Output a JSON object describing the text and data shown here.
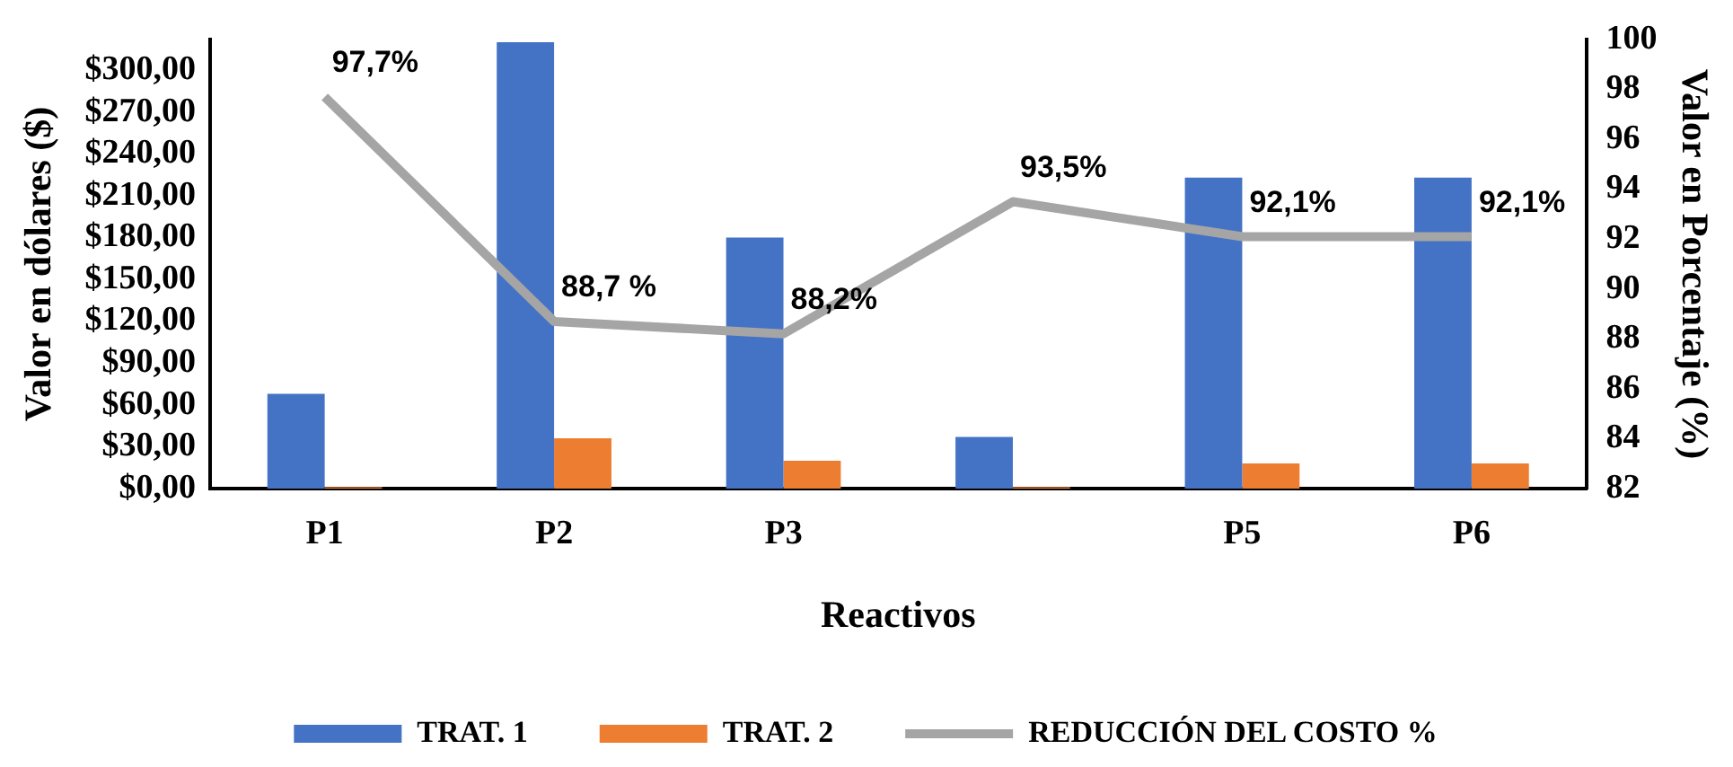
{
  "chart_data": {
    "type": "bar",
    "xlabel": "Reactivos",
    "ylabel": "Valor en dólares ($)",
    "y2label": "Valor en Porcentaje (%)",
    "categories": [
      "P1",
      "P2",
      "P3",
      null,
      "P5",
      "P6"
    ],
    "series": [
      {
        "name": "TRAT. 1",
        "color": "#4472c4",
        "values": [
          68,
          320,
          180,
          37,
          223,
          223
        ]
      },
      {
        "name": "TRAT. 2",
        "color": "#ed7d31",
        "values": [
          1,
          36,
          20,
          1,
          18,
          18
        ]
      },
      {
        "name": "REDUCCIÓN DEL COSTO %",
        "type": "line",
        "axis": "y2",
        "color": "#a5a5a5",
        "marker": "none",
        "values": [
          97.7,
          88.7,
          88.2,
          93.5,
          92.1,
          92.1
        ],
        "value_labels": [
          "97,7%",
          "88,7 %",
          "88,2%",
          "93,5%",
          "92,1%",
          "92,1%"
        ]
      }
    ],
    "ylim": [
      0,
      322
    ],
    "yticks": [
      {
        "value": 0,
        "label": "$0,00"
      },
      {
        "value": 30,
        "label": "$30,00"
      },
      {
        "value": 60,
        "label": "$60,00"
      },
      {
        "value": 90,
        "label": "$90,00"
      },
      {
        "value": 120,
        "label": "$120,00"
      },
      {
        "value": 150,
        "label": "$150,00"
      },
      {
        "value": 180,
        "label": "$180,00"
      },
      {
        "value": 210,
        "label": "$210,00"
      },
      {
        "value": 240,
        "label": "$240,00"
      },
      {
        "value": 270,
        "label": "$270,00"
      },
      {
        "value": 300,
        "label": "$300,00"
      }
    ],
    "y2lim": [
      82,
      100
    ],
    "y2ticks": [
      82,
      84,
      86,
      88,
      90,
      92,
      94,
      96,
      98,
      100
    ],
    "grid": false,
    "legend": "bottom"
  }
}
